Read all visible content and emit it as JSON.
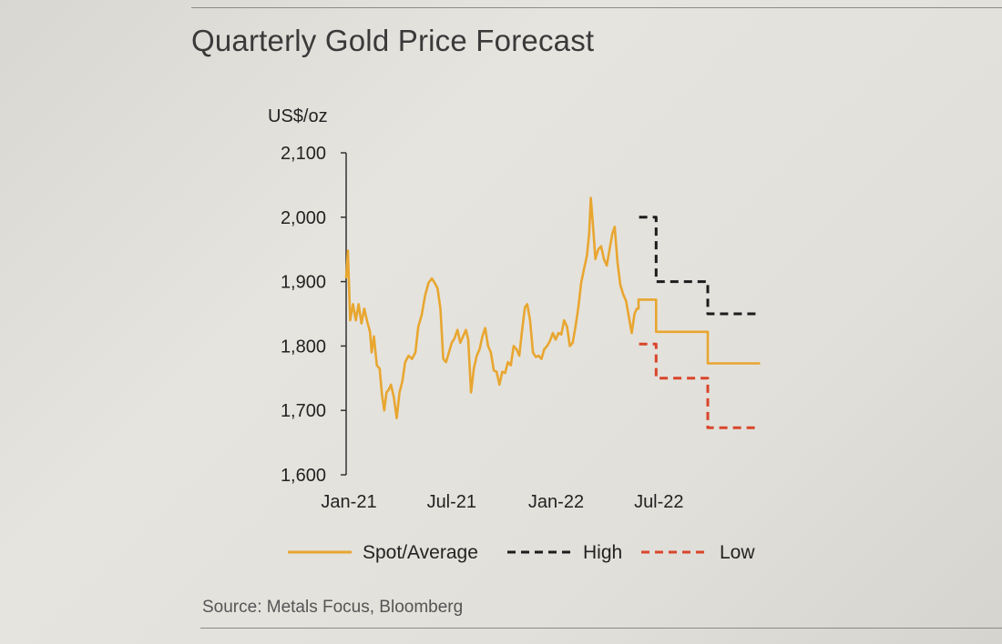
{
  "title": "Quarterly Gold Price Forecast",
  "source": "Source: Metals Focus, Bloomberg",
  "chart_data": {
    "type": "line",
    "title": "Quarterly Gold Price Forecast",
    "ylabel": "US$/oz",
    "xlabel": "",
    "ylim": [
      1600,
      2100
    ],
    "yticks": [
      1600,
      1700,
      1800,
      1900,
      2000,
      2100
    ],
    "ytick_labels": [
      "1,600",
      "1,700",
      "1,800",
      "1,900",
      "2,000",
      "2,100"
    ],
    "xlim": [
      "2021-01-01",
      "2023-01-01"
    ],
    "xticks": [
      "2021-01-01",
      "2021-07-01",
      "2022-01-01",
      "2022-07-01"
    ],
    "xtick_labels": [
      "Jan-21",
      "Jul-21",
      "Jan-22",
      "Jul-22"
    ],
    "grid": false,
    "legend": "bottom",
    "series": [
      {
        "name": "Spot/Average",
        "color": "#e8a630",
        "style": "solid",
        "points": [
          [
            "2021-01-01",
            1905
          ],
          [
            "2021-01-04",
            1948
          ],
          [
            "2021-01-08",
            1840
          ],
          [
            "2021-01-13",
            1865
          ],
          [
            "2021-01-18",
            1840
          ],
          [
            "2021-01-23",
            1865
          ],
          [
            "2021-01-28",
            1835
          ],
          [
            "2021-02-02",
            1858
          ],
          [
            "2021-02-07",
            1838
          ],
          [
            "2021-02-12",
            1822
          ],
          [
            "2021-02-15",
            1790
          ],
          [
            "2021-02-19",
            1815
          ],
          [
            "2021-02-24",
            1770
          ],
          [
            "2021-03-01",
            1765
          ],
          [
            "2021-03-05",
            1725
          ],
          [
            "2021-03-09",
            1700
          ],
          [
            "2021-03-13",
            1728
          ],
          [
            "2021-03-17",
            1732
          ],
          [
            "2021-03-21",
            1740
          ],
          [
            "2021-03-26",
            1720
          ],
          [
            "2021-03-31",
            1688
          ],
          [
            "2021-04-05",
            1728
          ],
          [
            "2021-04-10",
            1745
          ],
          [
            "2021-04-15",
            1775
          ],
          [
            "2021-04-21",
            1785
          ],
          [
            "2021-04-27",
            1780
          ],
          [
            "2021-05-03",
            1790
          ],
          [
            "2021-05-08",
            1830
          ],
          [
            "2021-05-14",
            1848
          ],
          [
            "2021-05-20",
            1878
          ],
          [
            "2021-05-26",
            1898
          ],
          [
            "2021-06-01",
            1905
          ],
          [
            "2021-06-06",
            1898
          ],
          [
            "2021-06-11",
            1890
          ],
          [
            "2021-06-16",
            1858
          ],
          [
            "2021-06-21",
            1780
          ],
          [
            "2021-06-26",
            1775
          ],
          [
            "2021-07-01",
            1790
          ],
          [
            "2021-07-06",
            1805
          ],
          [
            "2021-07-11",
            1812
          ],
          [
            "2021-07-16",
            1825
          ],
          [
            "2021-07-21",
            1805
          ],
          [
            "2021-07-26",
            1815
          ],
          [
            "2021-07-31",
            1825
          ],
          [
            "2021-08-04",
            1810
          ],
          [
            "2021-08-09",
            1728
          ],
          [
            "2021-08-14",
            1765
          ],
          [
            "2021-08-19",
            1785
          ],
          [
            "2021-08-24",
            1795
          ],
          [
            "2021-08-29",
            1815
          ],
          [
            "2021-09-03",
            1828
          ],
          [
            "2021-09-08",
            1800
          ],
          [
            "2021-09-13",
            1790
          ],
          [
            "2021-09-18",
            1762
          ],
          [
            "2021-09-23",
            1760
          ],
          [
            "2021-09-28",
            1740
          ],
          [
            "2021-10-03",
            1760
          ],
          [
            "2021-10-08",
            1758
          ],
          [
            "2021-10-13",
            1775
          ],
          [
            "2021-10-18",
            1770
          ],
          [
            "2021-10-23",
            1800
          ],
          [
            "2021-10-28",
            1795
          ],
          [
            "2021-11-02",
            1785
          ],
          [
            "2021-11-07",
            1825
          ],
          [
            "2021-11-12",
            1860
          ],
          [
            "2021-11-16",
            1865
          ],
          [
            "2021-11-21",
            1840
          ],
          [
            "2021-11-26",
            1790
          ],
          [
            "2021-12-01",
            1783
          ],
          [
            "2021-12-06",
            1785
          ],
          [
            "2021-12-11",
            1780
          ],
          [
            "2021-12-16",
            1795
          ],
          [
            "2021-12-21",
            1800
          ],
          [
            "2021-12-26",
            1808
          ],
          [
            "2021-12-31",
            1820
          ],
          [
            "2022-01-05",
            1810
          ],
          [
            "2022-01-10",
            1820
          ],
          [
            "2022-01-15",
            1818
          ],
          [
            "2022-01-20",
            1840
          ],
          [
            "2022-01-25",
            1830
          ],
          [
            "2022-01-30",
            1800
          ],
          [
            "2022-02-04",
            1805
          ],
          [
            "2022-02-09",
            1830
          ],
          [
            "2022-02-14",
            1860
          ],
          [
            "2022-02-19",
            1898
          ],
          [
            "2022-02-24",
            1920
          ],
          [
            "2022-03-01",
            1940
          ],
          [
            "2022-03-05",
            1975
          ],
          [
            "2022-03-08",
            2030
          ],
          [
            "2022-03-12",
            1985
          ],
          [
            "2022-03-16",
            1935
          ],
          [
            "2022-03-21",
            1950
          ],
          [
            "2022-03-26",
            1955
          ],
          [
            "2022-03-31",
            1935
          ],
          [
            "2022-04-05",
            1925
          ],
          [
            "2022-04-10",
            1950
          ],
          [
            "2022-04-15",
            1975
          ],
          [
            "2022-04-19",
            1985
          ],
          [
            "2022-04-24",
            1930
          ],
          [
            "2022-04-29",
            1895
          ],
          [
            "2022-05-04",
            1880
          ],
          [
            "2022-05-09",
            1870
          ],
          [
            "2022-05-14",
            1845
          ],
          [
            "2022-05-19",
            1820
          ],
          [
            "2022-05-24",
            1850
          ],
          [
            "2022-05-28",
            1858
          ],
          [
            "2022-05-31",
            1858
          ],
          [
            "2022-05-31",
            1872
          ],
          [
            "2022-07-01",
            1872
          ],
          [
            "2022-07-01",
            1822
          ],
          [
            "2022-09-30",
            1822
          ],
          [
            "2022-09-30",
            1773
          ],
          [
            "2022-12-31",
            1773
          ]
        ]
      },
      {
        "name": "High",
        "color": "#1c1c1c",
        "style": "dashed",
        "points": [
          [
            "2022-06-01",
            2000
          ],
          [
            "2022-07-01",
            2000
          ],
          [
            "2022-07-01",
            1900
          ],
          [
            "2022-09-30",
            1900
          ],
          [
            "2022-09-30",
            1850
          ],
          [
            "2022-12-31",
            1850
          ]
        ]
      },
      {
        "name": "Low",
        "color": "#d9452b",
        "style": "dashed",
        "points": [
          [
            "2022-06-01",
            1803
          ],
          [
            "2022-07-01",
            1803
          ],
          [
            "2022-07-01",
            1750
          ],
          [
            "2022-09-30",
            1750
          ],
          [
            "2022-09-30",
            1673
          ],
          [
            "2022-12-31",
            1673
          ]
        ]
      }
    ]
  }
}
